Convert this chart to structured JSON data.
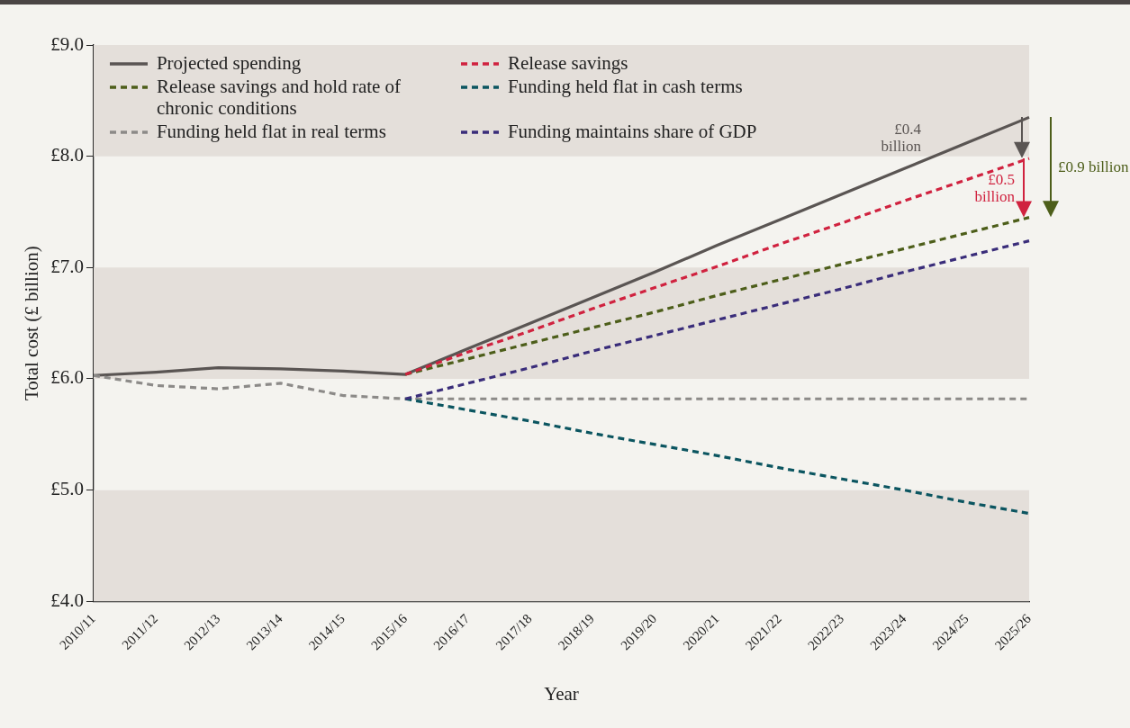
{
  "chart_data": {
    "type": "line",
    "xlabel": "Year",
    "ylabel": "Total cost (£ billion)",
    "categories": [
      "2010/11",
      "2011/12",
      "2012/13",
      "2013/14",
      "2014/15",
      "2015/16",
      "2016/17",
      "2017/18",
      "2018/19",
      "2019/20",
      "2020/21",
      "2021/22",
      "2022/23",
      "2023/24",
      "2024/25",
      "2025/26"
    ],
    "series": [
      {
        "name": "Projected spending",
        "color": "#5a5553",
        "line_style": "solid",
        "values": [
          6.03,
          6.06,
          6.1,
          6.09,
          6.07,
          6.04,
          6.27,
          6.5,
          6.73,
          6.96,
          7.2,
          7.43,
          7.66,
          7.89,
          8.12,
          8.35
        ]
      },
      {
        "name": "Release savings and hold rate of chronic conditions",
        "color": "#4d5e1a",
        "line_style": "dashed",
        "values": [
          null,
          null,
          null,
          null,
          null,
          6.04,
          6.18,
          6.32,
          6.46,
          6.6,
          6.75,
          6.89,
          7.03,
          7.17,
          7.31,
          7.45
        ]
      },
      {
        "name": "Funding held flat in real terms",
        "color": "#8c8a88",
        "line_style": "dashed",
        "values": [
          6.03,
          5.94,
          5.91,
          5.96,
          5.85,
          5.82,
          5.82,
          5.82,
          5.82,
          5.82,
          5.82,
          5.82,
          5.82,
          5.82,
          5.82,
          5.82
        ]
      },
      {
        "name": "Release savings",
        "color": "#d0223f",
        "line_style": "dashed",
        "values": [
          null,
          null,
          null,
          null,
          null,
          6.04,
          6.24,
          6.43,
          6.63,
          6.82,
          7.01,
          7.21,
          7.4,
          7.6,
          7.79,
          7.98
        ]
      },
      {
        "name": "Funding held flat in cash terms",
        "color": "#0b5560",
        "line_style": "dashed",
        "values": [
          null,
          null,
          null,
          null,
          null,
          5.82,
          5.72,
          5.62,
          5.51,
          5.41,
          5.31,
          5.2,
          5.1,
          5.0,
          4.89,
          4.79
        ]
      },
      {
        "name": "Funding maintains share of GDP",
        "color": "#3a2d7a",
        "line_style": "dashed",
        "values": [
          null,
          null,
          null,
          null,
          null,
          5.82,
          5.96,
          6.1,
          6.25,
          6.39,
          6.53,
          6.67,
          6.81,
          6.96,
          7.1,
          7.24
        ]
      }
    ],
    "ylim": [
      4,
      9
    ],
    "yticks": [
      {
        "value": 4,
        "label": "£4.0"
      },
      {
        "value": 5,
        "label": "£5.0"
      },
      {
        "value": 6,
        "label": "£6.0"
      },
      {
        "value": 7,
        "label": "£7.0"
      },
      {
        "value": 8,
        "label": "£8.0"
      },
      {
        "value": 9,
        "label": "£9.0"
      }
    ],
    "bands": [
      {
        "axis": "y",
        "from": 4,
        "to": 5,
        "color": "#e4dfda"
      },
      {
        "axis": "y",
        "from": 6,
        "to": 7,
        "color": "#e4dfda"
      },
      {
        "axis": "y",
        "from": 8,
        "to": 9,
        "color": "#e4dfda"
      }
    ],
    "grid": false,
    "legend": "top left",
    "marker": "none",
    "annotations": [
      "£0.4 billion",
      "£0.5 billion",
      "£0.9 billion"
    ]
  }
}
